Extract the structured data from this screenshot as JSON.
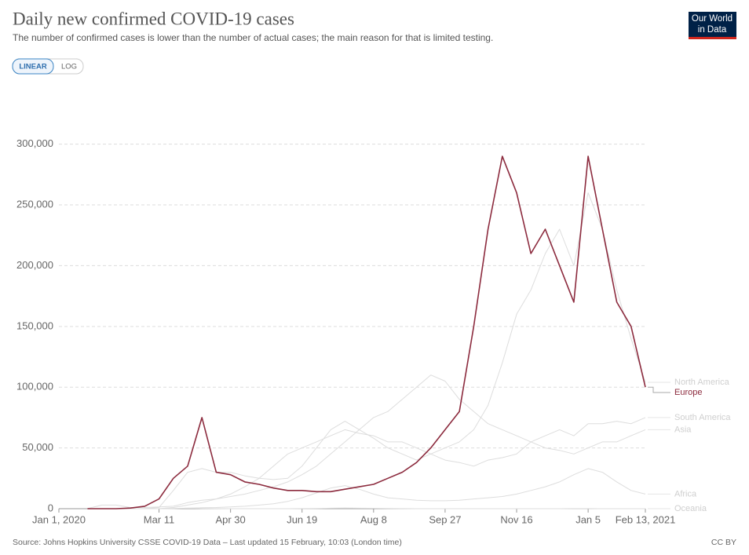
{
  "chart_data": {
    "type": "line",
    "title": "Daily new confirmed COVID-19 cases",
    "subtitle": "The number of confirmed cases is lower than the number of actual cases; the main reason for that is limited testing.",
    "scale_buttons": [
      "LINEAR",
      "LOG"
    ],
    "log_scale": false,
    "logo": [
      "Our World",
      "in Data"
    ],
    "source": "Source: Johns Hopkins University CSSE COVID-19 Data – Last updated 15 February, 10:03 (London time)",
    "license": "CC BY",
    "categories": [
      "Jan 1, 2020",
      null,
      null,
      null,
      null,
      null,
      null,
      "Mar 11",
      null,
      null,
      null,
      null,
      "Apr 30",
      null,
      null,
      null,
      null,
      "Jun 19",
      null,
      null,
      null,
      null,
      "Aug 8",
      null,
      null,
      null,
      null,
      "Sep 27",
      null,
      null,
      null,
      null,
      "Nov 16",
      null,
      null,
      null,
      null,
      "Jan 5",
      null,
      null,
      null,
      "Feb 13, 2021"
    ],
    "ylim": [
      0,
      345000
    ],
    "yticks": [
      0,
      {
        "value": 50000,
        "label": "50,000"
      },
      {
        "value": 100000,
        "label": "100,000"
      },
      {
        "value": 150000,
        "label": "150,000"
      },
      {
        "value": 200000,
        "label": "200,000"
      },
      {
        "value": 250000,
        "label": "250,000"
      },
      {
        "value": 300000,
        "label": "300,000"
      }
    ],
    "grid": true,
    "series": [
      {
        "name": "North America",
        "color": "#dddddd",
        "values": [
          null,
          null,
          0,
          0,
          0,
          0,
          100,
          1000,
          15000,
          30000,
          33000,
          30000,
          30000,
          27000,
          25000,
          24000,
          25000,
          35000,
          50000,
          65000,
          72000,
          65000,
          58000,
          50000,
          45000,
          40000,
          45000,
          50000,
          55000,
          65000,
          85000,
          120000,
          160000,
          180000,
          210000,
          230000,
          200000,
          260000,
          230000,
          180000,
          140000,
          104000
        ]
      },
      {
        "name": "South America",
        "color": "#dddddd",
        "values": [
          null,
          null,
          0,
          0,
          0,
          0,
          0,
          50,
          1000,
          3000,
          5000,
          8000,
          12000,
          18000,
          25000,
          35000,
          45000,
          50000,
          55000,
          60000,
          65000,
          62000,
          60000,
          55000,
          55000,
          50000,
          45000,
          40000,
          38000,
          35000,
          40000,
          42000,
          45000,
          55000,
          60000,
          65000,
          60000,
          70000,
          70000,
          72000,
          70000,
          75000
        ]
      },
      {
        "name": "Asia",
        "color": "#dddddd",
        "values": [
          null,
          null,
          100,
          3000,
          3000,
          1000,
          1000,
          1500,
          2000,
          5000,
          7000,
          8000,
          10000,
          12000,
          15000,
          18000,
          22000,
          28000,
          35000,
          45000,
          55000,
          65000,
          75000,
          80000,
          90000,
          100000,
          110000,
          105000,
          90000,
          80000,
          70000,
          65000,
          60000,
          55000,
          50000,
          48000,
          45000,
          50000,
          55000,
          55000,
          60000,
          65000
        ]
      },
      {
        "name": "Africa",
        "color": "#dddddd",
        "values": [
          null,
          null,
          0,
          0,
          0,
          0,
          0,
          20,
          100,
          500,
          800,
          1000,
          1500,
          2000,
          3000,
          4000,
          6000,
          9000,
          13000,
          17000,
          19000,
          16000,
          12000,
          9000,
          8000,
          7000,
          6500,
          6500,
          7000,
          8000,
          9000,
          10000,
          12000,
          15000,
          18000,
          22000,
          28000,
          33000,
          30000,
          22000,
          15000,
          12000
        ]
      },
      {
        "name": "Oceania",
        "color": "#dddddd",
        "values": [
          null,
          null,
          0,
          0,
          0,
          0,
          0,
          20,
          200,
          400,
          200,
          50,
          20,
          10,
          10,
          10,
          20,
          50,
          200,
          400,
          600,
          400,
          300,
          100,
          50,
          30,
          20,
          20,
          20,
          20,
          20,
          20,
          20,
          20,
          20,
          30,
          40,
          40,
          30,
          20,
          10,
          10
        ]
      },
      {
        "name": "Europe",
        "color": "#8c2b3e",
        "values": [
          null,
          null,
          0,
          0,
          0,
          500,
          2000,
          8000,
          25000,
          35000,
          75000,
          30000,
          28000,
          22000,
          20000,
          17000,
          15000,
          15000,
          14000,
          14000,
          16000,
          18000,
          20000,
          25000,
          30000,
          38000,
          50000,
          65000,
          80000,
          150000,
          230000,
          290000,
          260000,
          210000,
          230000,
          200000,
          170000,
          290000,
          230000,
          170000,
          150000,
          100000
        ]
      }
    ]
  }
}
